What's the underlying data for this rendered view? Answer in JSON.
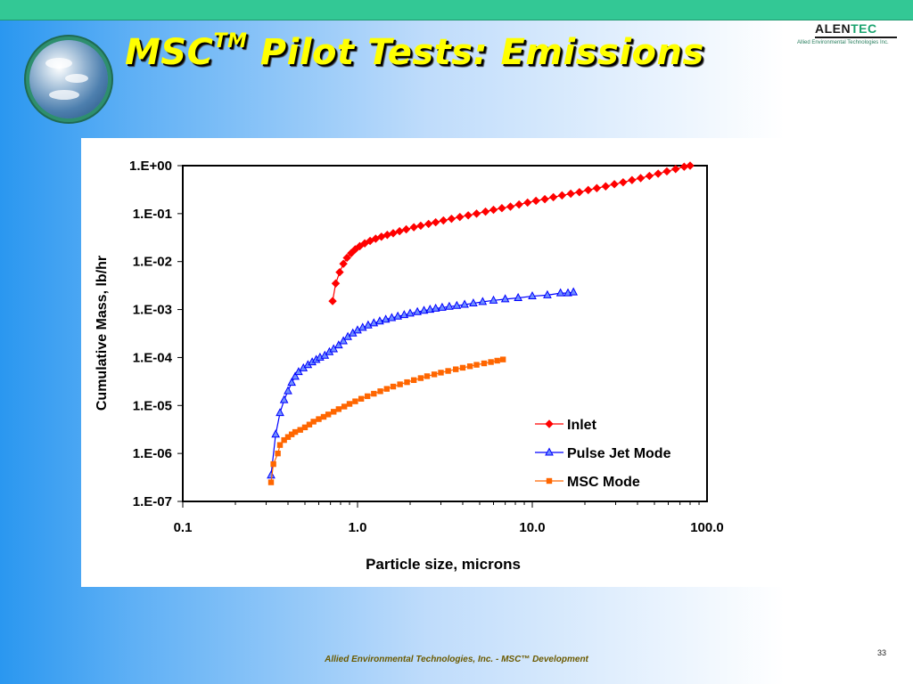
{
  "slide": {
    "title_main": "MSC",
    "title_sup": "TM",
    "title_rest": " Pilot Tests: Emissions",
    "footer": "Allied Environmental Technologies, Inc. - MSC™ Development",
    "page_number": "33",
    "logo_text_a": "ALEN",
    "logo_text_b": "TEC",
    "logo_subtitle": "Allied Environmental Technologies Inc.",
    "colors": {
      "topbar": "#33c895",
      "title": "#ffff00"
    }
  },
  "chart_data": {
    "type": "scatter",
    "xlabel": "Particle size, microns",
    "ylabel": "Cumulative Mass, lb/hr",
    "x_scale": "log",
    "y_scale": "log",
    "xlim": [
      0.1,
      100
    ],
    "ylim": [
      1e-07,
      1
    ],
    "x_ticks": [
      0.1,
      1,
      10,
      100
    ],
    "x_tick_labels": [
      "0.1",
      "1.0",
      "10.0",
      "100.0"
    ],
    "y_ticks": [
      1,
      0.1,
      0.01,
      0.001,
      0.0001,
      1e-05,
      1e-06,
      1e-07
    ],
    "y_tick_labels": [
      "1.E+00",
      "1.E-01",
      "1.E-02",
      "1.E-03",
      "1.E-04",
      "1.E-05",
      "1.E-06",
      "1.E-07"
    ],
    "grid": false,
    "legend_position": "bottom-right",
    "series": [
      {
        "name": "Inlet",
        "marker": "diamond",
        "color": "#ff0000",
        "points": [
          {
            "x": 0.72,
            "y": 0.0015
          },
          {
            "x": 0.75,
            "y": 0.0035
          },
          {
            "x": 0.79,
            "y": 0.006
          },
          {
            "x": 0.83,
            "y": 0.009
          },
          {
            "x": 0.87,
            "y": 0.012
          },
          {
            "x": 0.92,
            "y": 0.015
          },
          {
            "x": 0.97,
            "y": 0.018
          },
          {
            "x": 1.03,
            "y": 0.021
          },
          {
            "x": 1.1,
            "y": 0.024
          },
          {
            "x": 1.18,
            "y": 0.027
          },
          {
            "x": 1.27,
            "y": 0.03
          },
          {
            "x": 1.37,
            "y": 0.033
          },
          {
            "x": 1.48,
            "y": 0.036
          },
          {
            "x": 1.6,
            "y": 0.039
          },
          {
            "x": 1.74,
            "y": 0.043
          },
          {
            "x": 1.9,
            "y": 0.047
          },
          {
            "x": 2.1,
            "y": 0.052
          },
          {
            "x": 2.3,
            "y": 0.056
          },
          {
            "x": 2.55,
            "y": 0.061
          },
          {
            "x": 2.8,
            "y": 0.066
          },
          {
            "x": 3.1,
            "y": 0.072
          },
          {
            "x": 3.45,
            "y": 0.078
          },
          {
            "x": 3.85,
            "y": 0.085
          },
          {
            "x": 4.3,
            "y": 0.092
          },
          {
            "x": 4.8,
            "y": 0.1
          },
          {
            "x": 5.4,
            "y": 0.11
          },
          {
            "x": 6.0,
            "y": 0.12
          },
          {
            "x": 6.7,
            "y": 0.13
          },
          {
            "x": 7.5,
            "y": 0.14
          },
          {
            "x": 8.4,
            "y": 0.155
          },
          {
            "x": 9.4,
            "y": 0.17
          },
          {
            "x": 10.5,
            "y": 0.185
          },
          {
            "x": 11.8,
            "y": 0.2
          },
          {
            "x": 13.2,
            "y": 0.22
          },
          {
            "x": 14.8,
            "y": 0.24
          },
          {
            "x": 16.6,
            "y": 0.26
          },
          {
            "x": 18.6,
            "y": 0.28
          },
          {
            "x": 20.9,
            "y": 0.31
          },
          {
            "x": 23.4,
            "y": 0.34
          },
          {
            "x": 26.3,
            "y": 0.37
          },
          {
            "x": 29.5,
            "y": 0.41
          },
          {
            "x": 33.1,
            "y": 0.45
          },
          {
            "x": 37.2,
            "y": 0.5
          },
          {
            "x": 41.7,
            "y": 0.55
          },
          {
            "x": 46.8,
            "y": 0.61
          },
          {
            "x": 52.5,
            "y": 0.68
          },
          {
            "x": 58.9,
            "y": 0.76
          },
          {
            "x": 66.1,
            "y": 0.85
          },
          {
            "x": 74,
            "y": 0.95
          },
          {
            "x": 80,
            "y": 1.0
          }
        ]
      },
      {
        "name": "Pulse Jet Mode",
        "marker": "triangle",
        "color": "#0000ff",
        "points": [
          {
            "x": 0.32,
            "y": 3.5e-07
          },
          {
            "x": 0.34,
            "y": 2.5e-06
          },
          {
            "x": 0.36,
            "y": 7e-06
          },
          {
            "x": 0.38,
            "y": 1.3e-05
          },
          {
            "x": 0.4,
            "y": 2e-05
          },
          {
            "x": 0.42,
            "y": 3e-05
          },
          {
            "x": 0.44,
            "y": 4e-05
          },
          {
            "x": 0.46,
            "y": 5e-05
          },
          {
            "x": 0.49,
            "y": 6e-05
          },
          {
            "x": 0.52,
            "y": 7e-05
          },
          {
            "x": 0.55,
            "y": 8e-05
          },
          {
            "x": 0.58,
            "y": 9e-05
          },
          {
            "x": 0.61,
            "y": 0.0001
          },
          {
            "x": 0.65,
            "y": 0.00011
          },
          {
            "x": 0.69,
            "y": 0.00013
          },
          {
            "x": 0.73,
            "y": 0.00015
          },
          {
            "x": 0.78,
            "y": 0.00018
          },
          {
            "x": 0.83,
            "y": 0.00022
          },
          {
            "x": 0.88,
            "y": 0.00027
          },
          {
            "x": 0.94,
            "y": 0.00032
          },
          {
            "x": 1.0,
            "y": 0.00037
          },
          {
            "x": 1.07,
            "y": 0.00042
          },
          {
            "x": 1.15,
            "y": 0.00047
          },
          {
            "x": 1.24,
            "y": 0.00052
          },
          {
            "x": 1.34,
            "y": 0.00057
          },
          {
            "x": 1.45,
            "y": 0.00062
          },
          {
            "x": 1.57,
            "y": 0.00067
          },
          {
            "x": 1.7,
            "y": 0.00072
          },
          {
            "x": 1.85,
            "y": 0.00077
          },
          {
            "x": 2.0,
            "y": 0.00083
          },
          {
            "x": 2.2,
            "y": 0.00089
          },
          {
            "x": 2.4,
            "y": 0.00095
          },
          {
            "x": 2.6,
            "y": 0.001
          },
          {
            "x": 2.8,
            "y": 0.00105
          },
          {
            "x": 3.05,
            "y": 0.0011
          },
          {
            "x": 3.35,
            "y": 0.00115
          },
          {
            "x": 3.7,
            "y": 0.0012
          },
          {
            "x": 4.1,
            "y": 0.00127
          },
          {
            "x": 4.6,
            "y": 0.00135
          },
          {
            "x": 5.2,
            "y": 0.00145
          },
          {
            "x": 6.0,
            "y": 0.00155
          },
          {
            "x": 7.0,
            "y": 0.00165
          },
          {
            "x": 8.3,
            "y": 0.00175
          },
          {
            "x": 10.0,
            "y": 0.0019
          },
          {
            "x": 12.2,
            "y": 0.002
          },
          {
            "x": 14.5,
            "y": 0.0022
          },
          {
            "x": 16,
            "y": 0.0022
          },
          {
            "x": 17.2,
            "y": 0.0023
          }
        ]
      },
      {
        "name": "MSC Mode",
        "marker": "square",
        "color": "#ff6600",
        "points": [
          {
            "x": 0.32,
            "y": 2.5e-07
          },
          {
            "x": 0.33,
            "y": 6e-07
          },
          {
            "x": 0.35,
            "y": 1e-06
          },
          {
            "x": 0.36,
            "y": 1.5e-06
          },
          {
            "x": 0.38,
            "y": 1.9e-06
          },
          {
            "x": 0.4,
            "y": 2.2e-06
          },
          {
            "x": 0.42,
            "y": 2.5e-06
          },
          {
            "x": 0.44,
            "y": 2.8e-06
          },
          {
            "x": 0.47,
            "y": 3.1e-06
          },
          {
            "x": 0.5,
            "y": 3.5e-06
          },
          {
            "x": 0.53,
            "y": 4e-06
          },
          {
            "x": 0.56,
            "y": 4.6e-06
          },
          {
            "x": 0.6,
            "y": 5.2e-06
          },
          {
            "x": 0.64,
            "y": 5.8e-06
          },
          {
            "x": 0.68,
            "y": 6.5e-06
          },
          {
            "x": 0.73,
            "y": 7.4e-06
          },
          {
            "x": 0.78,
            "y": 8.4e-06
          },
          {
            "x": 0.84,
            "y": 9.5e-06
          },
          {
            "x": 0.9,
            "y": 1.08e-05
          },
          {
            "x": 0.97,
            "y": 1.22e-05
          },
          {
            "x": 1.05,
            "y": 1.38e-05
          },
          {
            "x": 1.14,
            "y": 1.56e-05
          },
          {
            "x": 1.24,
            "y": 1.76e-05
          },
          {
            "x": 1.35,
            "y": 1.98e-05
          },
          {
            "x": 1.47,
            "y": 2.22e-05
          },
          {
            "x": 1.6,
            "y": 2.48e-05
          },
          {
            "x": 1.75,
            "y": 2.76e-05
          },
          {
            "x": 1.92,
            "y": 3.06e-05
          },
          {
            "x": 2.1,
            "y": 3.38e-05
          },
          {
            "x": 2.3,
            "y": 3.72e-05
          },
          {
            "x": 2.5,
            "y": 4.08e-05
          },
          {
            "x": 2.75,
            "y": 4.45e-05
          },
          {
            "x": 3.0,
            "y": 4.84e-05
          },
          {
            "x": 3.3,
            "y": 5.25e-05
          },
          {
            "x": 3.65,
            "y": 5.68e-05
          },
          {
            "x": 4.0,
            "y": 6.12e-05
          },
          {
            "x": 4.4,
            "y": 6.57e-05
          },
          {
            "x": 4.8,
            "y": 7.05e-05
          },
          {
            "x": 5.3,
            "y": 7.55e-05
          },
          {
            "x": 5.8,
            "y": 8.05e-05
          },
          {
            "x": 6.3,
            "y": 8.6e-05
          },
          {
            "x": 6.8,
            "y": 9.1e-05
          }
        ]
      }
    ]
  }
}
